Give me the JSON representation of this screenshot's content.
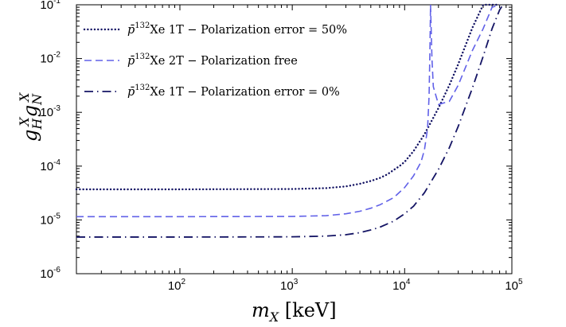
{
  "chart_data": {
    "type": "line",
    "title": "",
    "xlabel": "m_X [keV]",
    "ylabel": "g_H^X g_N^X",
    "xscale": "log",
    "yscale": "log",
    "xlim": [
      12,
      90000
    ],
    "ylim": [
      1e-06,
      0.1
    ],
    "x_ticks": [
      {
        "mantissa": "10",
        "exponent": "2",
        "value": 100
      },
      {
        "mantissa": "10",
        "exponent": "3",
        "value": 1000
      },
      {
        "mantissa": "10",
        "exponent": "4",
        "value": 10000
      },
      {
        "mantissa": "10",
        "exponent": "5",
        "value": 100000
      }
    ],
    "y_ticks": [
      {
        "mantissa": "10",
        "exponent": "-6",
        "value": 1e-06
      },
      {
        "mantissa": "10",
        "exponent": "-5",
        "value": 1e-05
      },
      {
        "mantissa": "10",
        "exponent": "-4",
        "value": 0.0001
      },
      {
        "mantissa": "10",
        "exponent": "-3",
        "value": 0.001
      },
      {
        "mantissa": "10",
        "exponent": "-2",
        "value": 0.01
      },
      {
        "mantissa": "10",
        "exponent": "-1",
        "value": 0.1
      }
    ],
    "legend_position": "top-left",
    "series": [
      {
        "name": "p̄¹³²Xe 1T − Polarization error = 50%",
        "label_parts": [
          "p̄",
          "132",
          "Xe 1T − Polarization error = 50%"
        ],
        "style": "dotted",
        "color": "#141464",
        "x": [
          12,
          100,
          1000,
          2000,
          3000,
          4000,
          5000,
          6000,
          7000,
          8000,
          9000,
          10000,
          12000,
          15000,
          20000,
          25000,
          30000,
          40000,
          50000,
          60000,
          70000
        ],
        "y": [
          3.7e-05,
          3.7e-05,
          3.75e-05,
          3.9e-05,
          4.2e-05,
          4.7e-05,
          5.3e-05,
          6e-05,
          7e-05,
          8.5e-05,
          0.0001,
          0.00012,
          0.00019,
          0.00039,
          0.0012,
          0.0032,
          0.0079,
          0.037,
          0.1,
          0.1,
          0.1
        ]
      },
      {
        "name": "p̄¹³²Xe 2T − Polarization free",
        "label_parts": [
          "p̄",
          "132",
          "Xe 2T − Polarization free"
        ],
        "style": "dashed",
        "color": "#6161e8",
        "x": [
          12,
          100,
          1000,
          2000,
          3000,
          4000,
          5000,
          6000,
          8000,
          10000,
          12000,
          14000,
          15000,
          16000,
          16500,
          16800,
          17000,
          17500,
          18000,
          20000,
          25000,
          30000,
          40000,
          50000,
          60000,
          70000
        ],
        "y": [
          1.15e-05,
          1.15e-05,
          1.16e-05,
          1.2e-05,
          1.3e-05,
          1.45e-05,
          1.65e-05,
          1.9e-05,
          2.6e-05,
          4e-05,
          6.6e-05,
          0.00012,
          0.0002,
          0.0005,
          0.002,
          0.015,
          0.1,
          0.01,
          0.003,
          0.0014,
          0.0016,
          0.0032,
          0.014,
          0.036,
          0.09,
          0.1
        ]
      },
      {
        "name": "p̄¹³²Xe 1T − Polarization error = 0%",
        "label_parts": [
          "p̄",
          "132",
          "Xe 1T − Polarization error = 0%"
        ],
        "style": "dashdot",
        "color": "#141464",
        "x": [
          12,
          100,
          1000,
          2000,
          3000,
          4000,
          5000,
          6000,
          8000,
          10000,
          12000,
          15000,
          20000,
          25000,
          30000,
          40000,
          50000,
          60000,
          70000,
          75000
        ],
        "y": [
          4.8e-06,
          4.8e-06,
          4.85e-06,
          5e-06,
          5.3e-06,
          5.8e-06,
          6.5e-06,
          7.3e-06,
          9.5e-06,
          1.3e-05,
          1.8e-05,
          3.2e-05,
          8.7e-05,
          0.00022,
          0.00055,
          0.0028,
          0.011,
          0.036,
          0.08,
          0.1
        ]
      }
    ]
  }
}
